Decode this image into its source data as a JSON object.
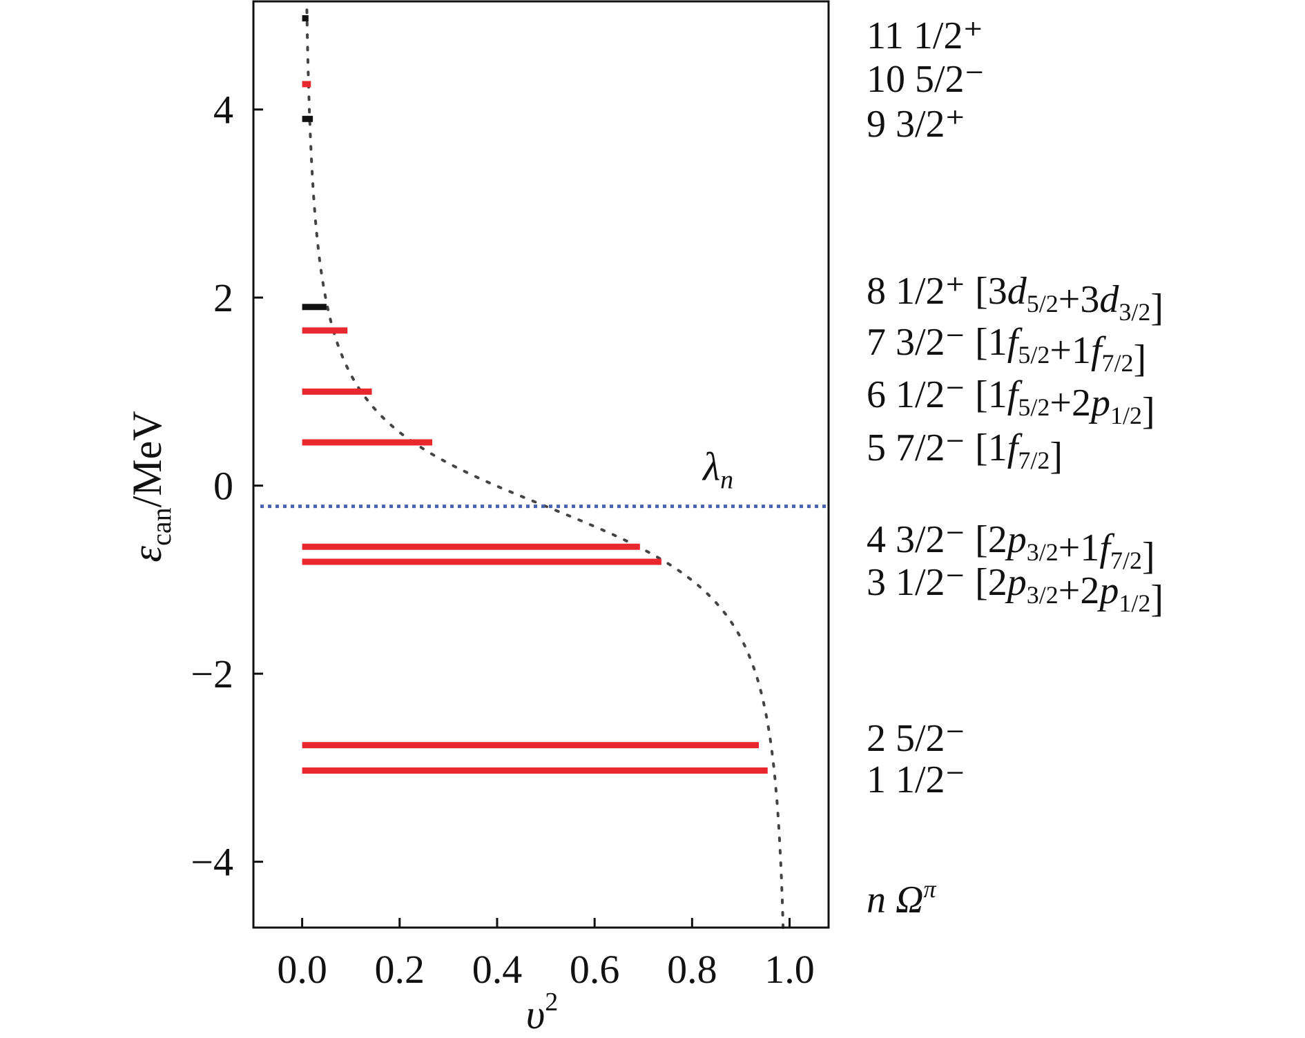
{
  "chart_data": {
    "type": "bar",
    "orientation": "horizontal",
    "xlabel": {
      "base": "υ",
      "sup": "2"
    },
    "ylabel": {
      "base": "ε",
      "sub": "can",
      "suffix": "/MeV"
    },
    "xlim": [
      -0.1,
      1.08
    ],
    "ylim": [
      -4.7,
      5.15
    ],
    "xticks": [
      0.0,
      0.2,
      0.4,
      0.6,
      0.8,
      1.0
    ],
    "xtick_labels": [
      "0.0",
      "0.2",
      "0.4",
      "0.6",
      "0.8",
      "1.0"
    ],
    "yticks": [
      -4,
      -2,
      0,
      2,
      4
    ],
    "ytick_labels": [
      "−4",
      "−2",
      "0",
      "2",
      "4"
    ],
    "grid": false,
    "colors": {
      "negative_parity": "#e8282e",
      "positive_parity": "#111111",
      "fermi_line": "#4a63b0",
      "curve": "#444444"
    },
    "levels": [
      {
        "n": 1,
        "energy": -3.03,
        "v2": 0.955,
        "parity": "-",
        "text": "1 1/2⁻",
        "config": ""
      },
      {
        "n": 2,
        "energy": -2.76,
        "v2": 0.937,
        "parity": "-",
        "text": "2 5/2⁻",
        "config": ""
      },
      {
        "n": 3,
        "energy": -0.81,
        "v2": 0.737,
        "parity": "-",
        "text": "3 1/2⁻",
        "config": "[2p3/2+2p1/2]"
      },
      {
        "n": 4,
        "energy": -0.65,
        "v2": 0.693,
        "parity": "-",
        "text": "4 3/2⁻",
        "config": "[2p3/2+1f7/2]"
      },
      {
        "n": 5,
        "energy": 0.46,
        "v2": 0.267,
        "parity": "-",
        "text": "5 7/2⁻",
        "config": "[1f7/2]"
      },
      {
        "n": 6,
        "energy": 1.0,
        "v2": 0.143,
        "parity": "-",
        "text": "6 1/2⁻",
        "config": "[1f5/2+2p1/2]"
      },
      {
        "n": 7,
        "energy": 1.65,
        "v2": 0.093,
        "parity": "-",
        "text": "7 3/2⁻",
        "config": "[1f5/2+1f7/2]"
      },
      {
        "n": 8,
        "energy": 1.9,
        "v2": 0.05,
        "parity": "+",
        "text": "8 1/2⁺",
        "config": "[3d5/2+3d3/2]"
      },
      {
        "n": 9,
        "energy": 3.9,
        "v2": 0.022,
        "parity": "+",
        "text": "9 3/2⁺",
        "config": ""
      },
      {
        "n": 10,
        "energy": 4.27,
        "v2": 0.018,
        "parity": "-",
        "text": "10 5/2⁻",
        "config": ""
      },
      {
        "n": 11,
        "energy": 4.97,
        "v2": 0.013,
        "parity": "+",
        "text": "11 1/2⁺",
        "config": ""
      }
    ],
    "fermi_level": {
      "energy": -0.22,
      "label": "λn"
    },
    "bcs_curve": {
      "lambda": -0.22,
      "delta": 1.05
    },
    "legend_text": "n Ωπ"
  }
}
